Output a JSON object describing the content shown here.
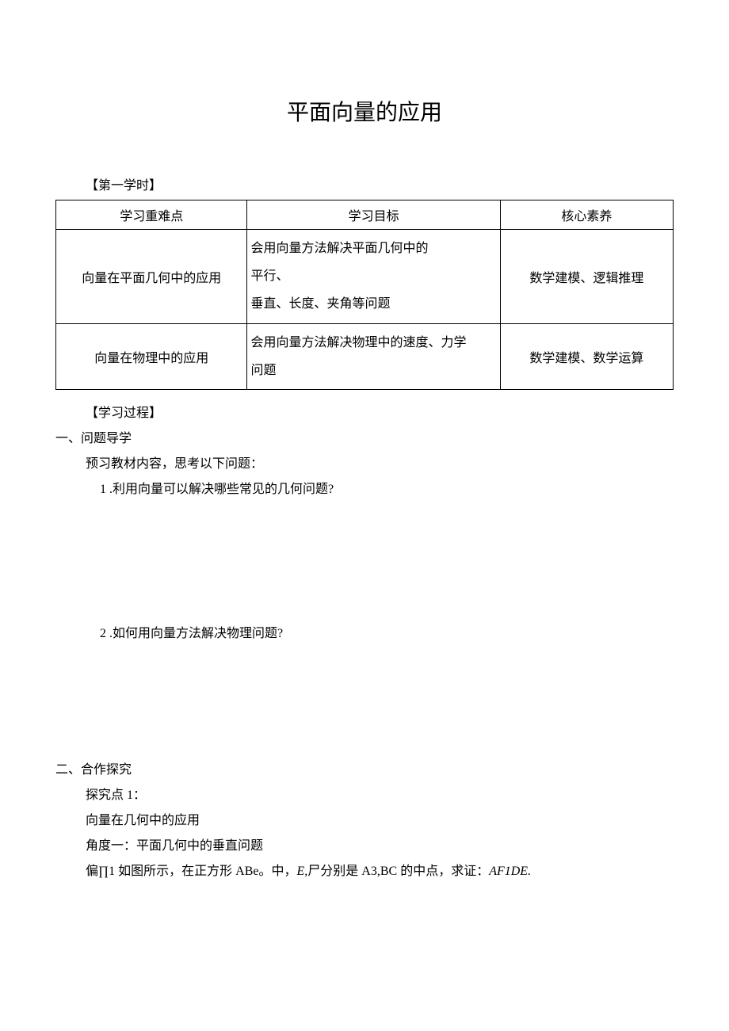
{
  "title": "平面向量的应用",
  "section_header": "【第一学时】",
  "table": {
    "header": {
      "col1": "学习重难点",
      "col2": "学习目标",
      "col3": "核心素养"
    },
    "row1": {
      "col1": "向量在平面几何中的应用",
      "col2_line1": "会用向量方法解决平面几何中的",
      "col2_line2": "平行、",
      "col2_line3": "垂直、长度、夹角等问题",
      "col3": "数学建模、逻辑推理"
    },
    "row2": {
      "col1": "向量在物理中的应用",
      "col2_line1": "会用向量方法解决物理中的速度、力学",
      "col2_line2": "问题",
      "col3": "数学建模、数学运算"
    }
  },
  "learning_process": "【学习过程】",
  "section1": {
    "heading": "一、问题导学",
    "intro": "预习教材内容，思考以下问题：",
    "q1": "1 .利用向量可以解决哪些常见的几何问题?",
    "q2": "2 .如何用向量方法解决物理问题?"
  },
  "section2": {
    "heading": "二、合作探究",
    "point1": "探究点 1：",
    "line1": "向量在几何中的应用",
    "line2": "角度一：平面几何中的垂直问题",
    "example_prefix": "偏∏1 如图所示，在正方形 ABe。中，",
    "example_italic1": "E,",
    "example_mid": "尸分别是 A3,BC 的中点，求证：",
    "example_italic2": "AF1DE."
  },
  "styles": {
    "background_color": "#ffffff",
    "text_color": "#000000",
    "border_color": "#000000",
    "title_fontsize": 28,
    "body_fontsize": 16
  }
}
